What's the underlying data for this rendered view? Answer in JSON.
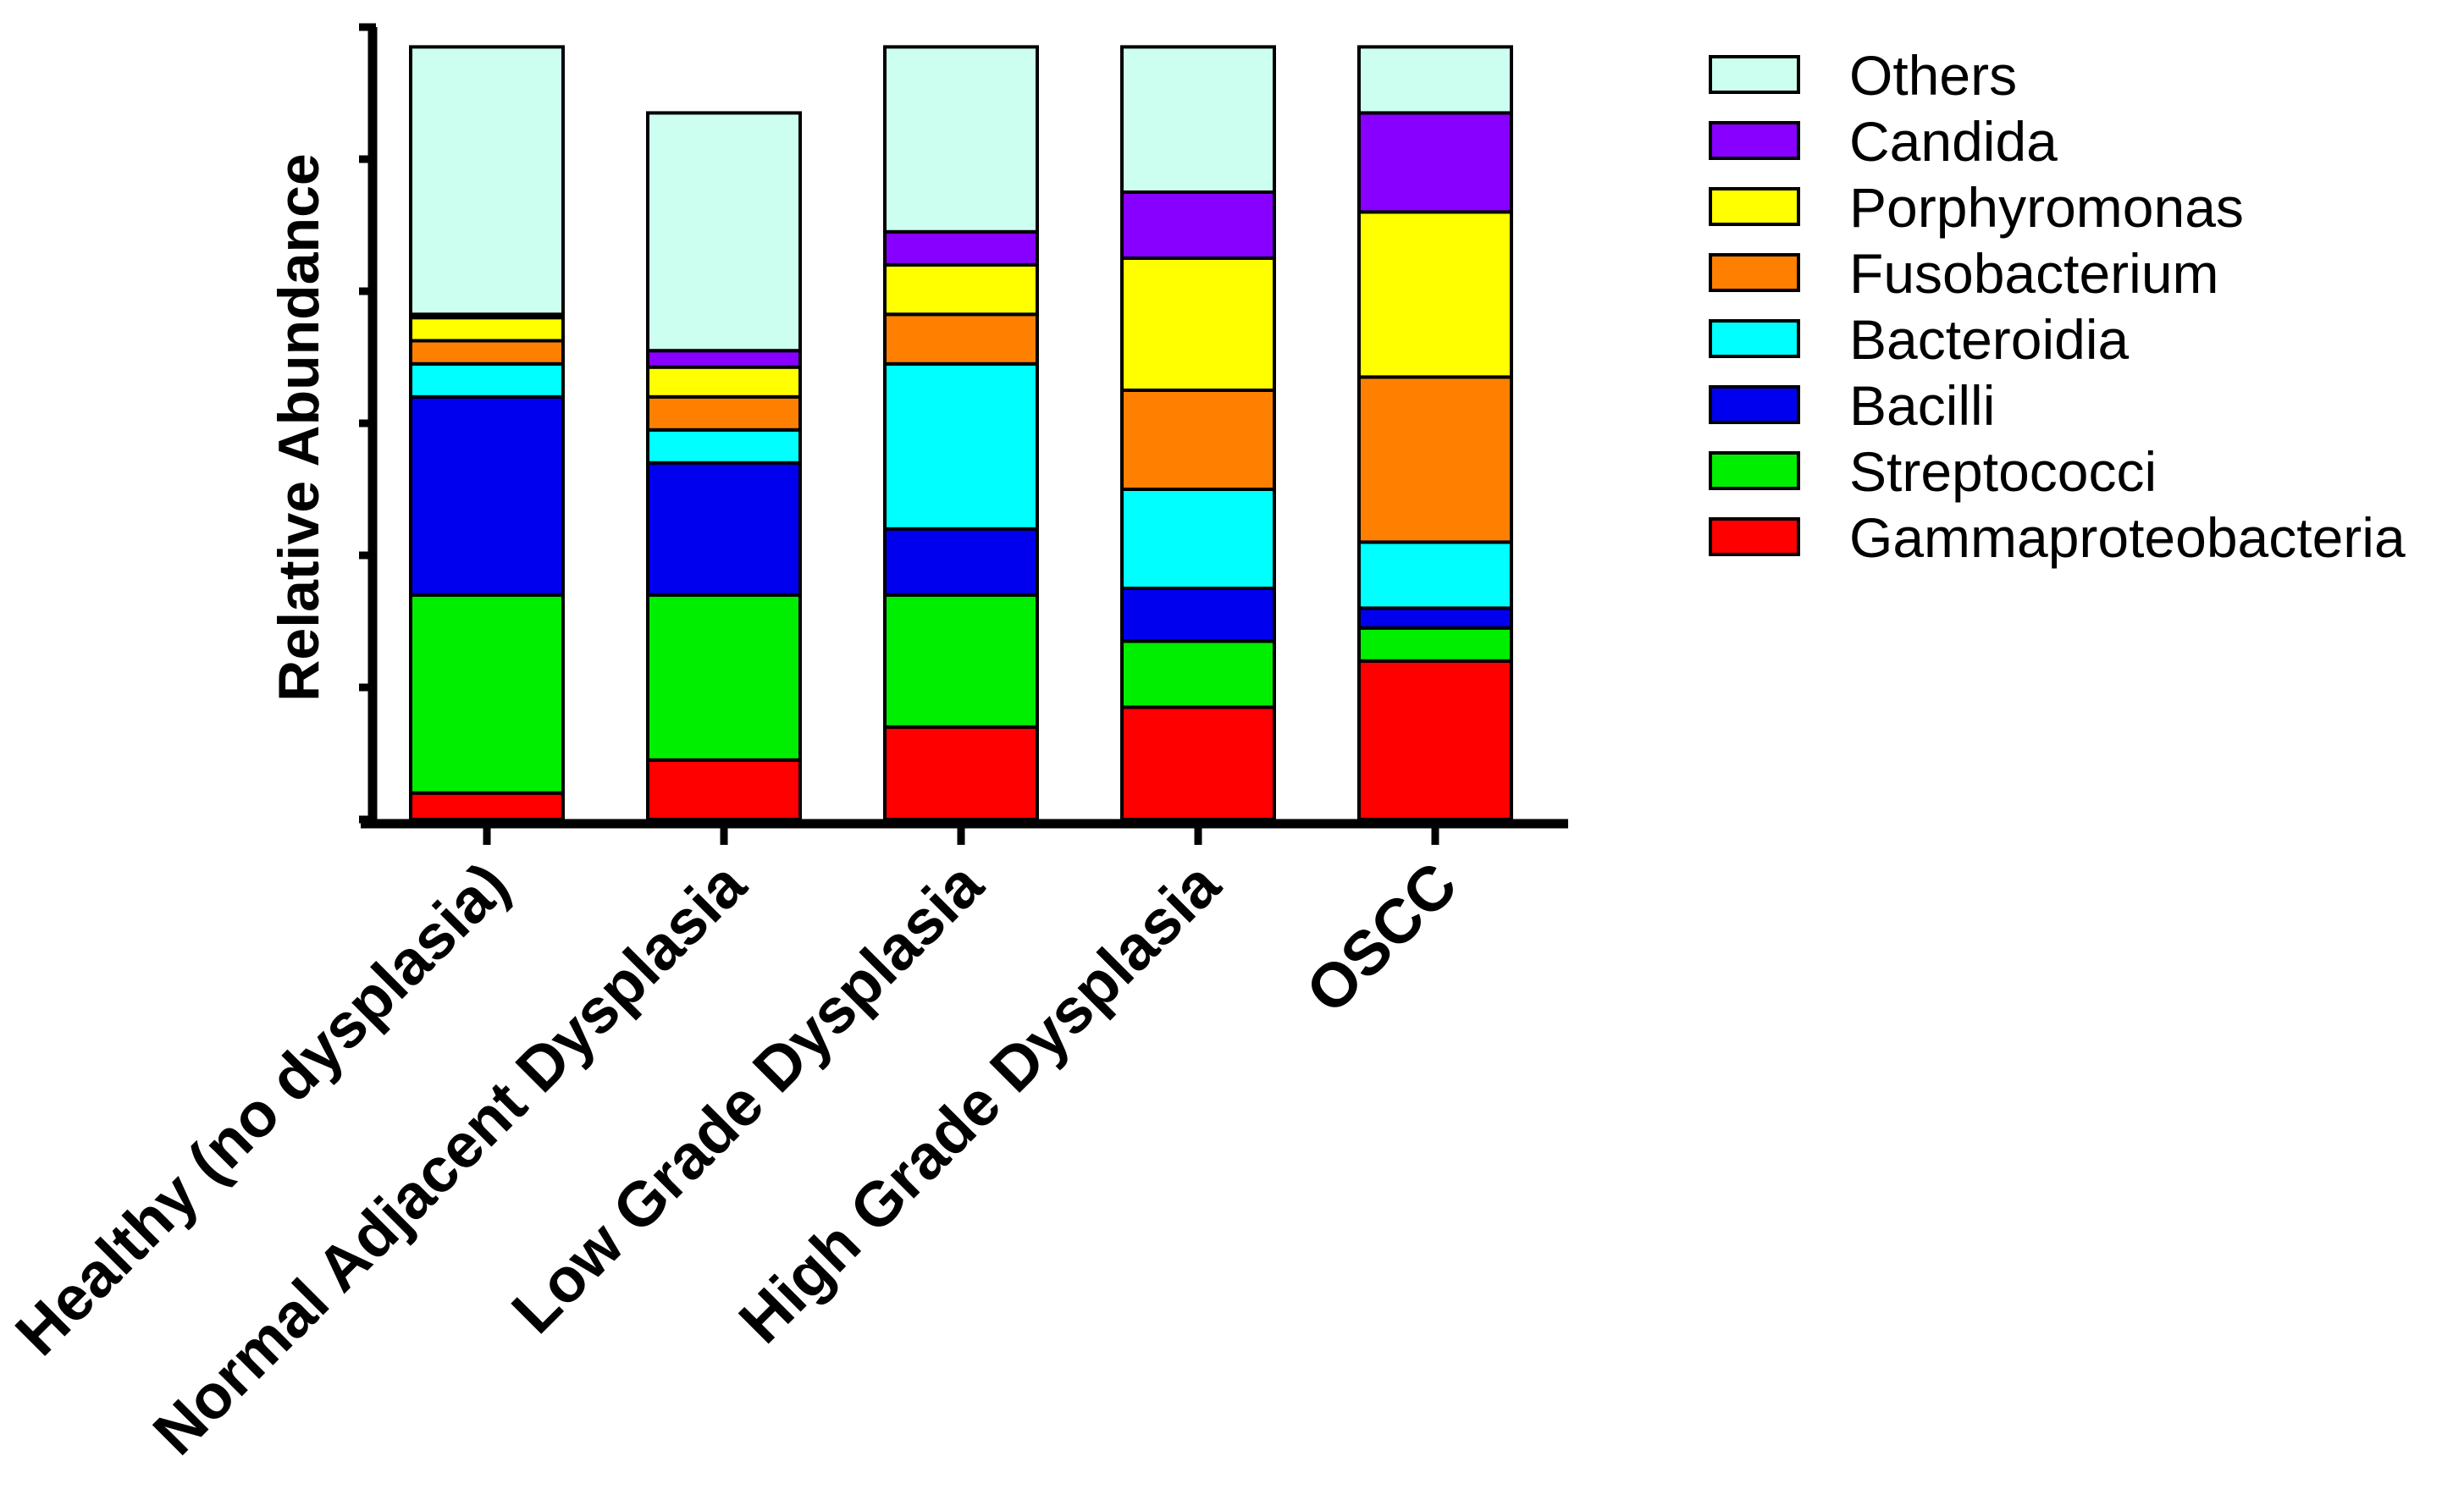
{
  "chart_data": {
    "type": "stacked-bar",
    "title": "",
    "xlabel": "",
    "ylabel": "Relative Abundance",
    "ylim": [
      0,
      1.2
    ],
    "y_tick_values": [
      0,
      0.2,
      0.4,
      0.6,
      0.8,
      1.0,
      1.2
    ],
    "y_tick_labels_shown": false,
    "grid": false,
    "legend_position": "right",
    "categories": [
      "Healthy (no dysplasia)",
      "Normal Adjacent Dysplasia",
      "Low Grade Dysplasia",
      "High Grade Dysplasia",
      "OSCC"
    ],
    "series": [
      {
        "name": "Gammaproteobacteria",
        "color": "#ff0000",
        "values": [
          0.04,
          0.09,
          0.14,
          0.17,
          0.24
        ]
      },
      {
        "name": "Streptococci",
        "color": "#00ee00",
        "values": [
          0.3,
          0.25,
          0.2,
          0.1,
          0.05
        ]
      },
      {
        "name": "Bacilli",
        "color": "#0000ee",
        "values": [
          0.3,
          0.2,
          0.1,
          0.08,
          0.03
        ]
      },
      {
        "name": "Bacteroidia",
        "color": "#00ffff",
        "values": [
          0.05,
          0.05,
          0.25,
          0.15,
          0.1
        ]
      },
      {
        "name": "Fusobacterium",
        "color": "#ff8000",
        "values": [
          0.035,
          0.05,
          0.075,
          0.15,
          0.25
        ]
      },
      {
        "name": "Porphyromonas",
        "color": "#ffff00",
        "values": [
          0.035,
          0.045,
          0.075,
          0.2,
          0.25
        ]
      },
      {
        "name": "Candida",
        "color": "#8800ff",
        "values": [
          0.005,
          0.025,
          0.05,
          0.1,
          0.15
        ]
      },
      {
        "name": "Others",
        "color": "#ccfff0",
        "values": [
          0.405,
          0.36,
          0.28,
          0.22,
          0.1
        ]
      }
    ]
  }
}
